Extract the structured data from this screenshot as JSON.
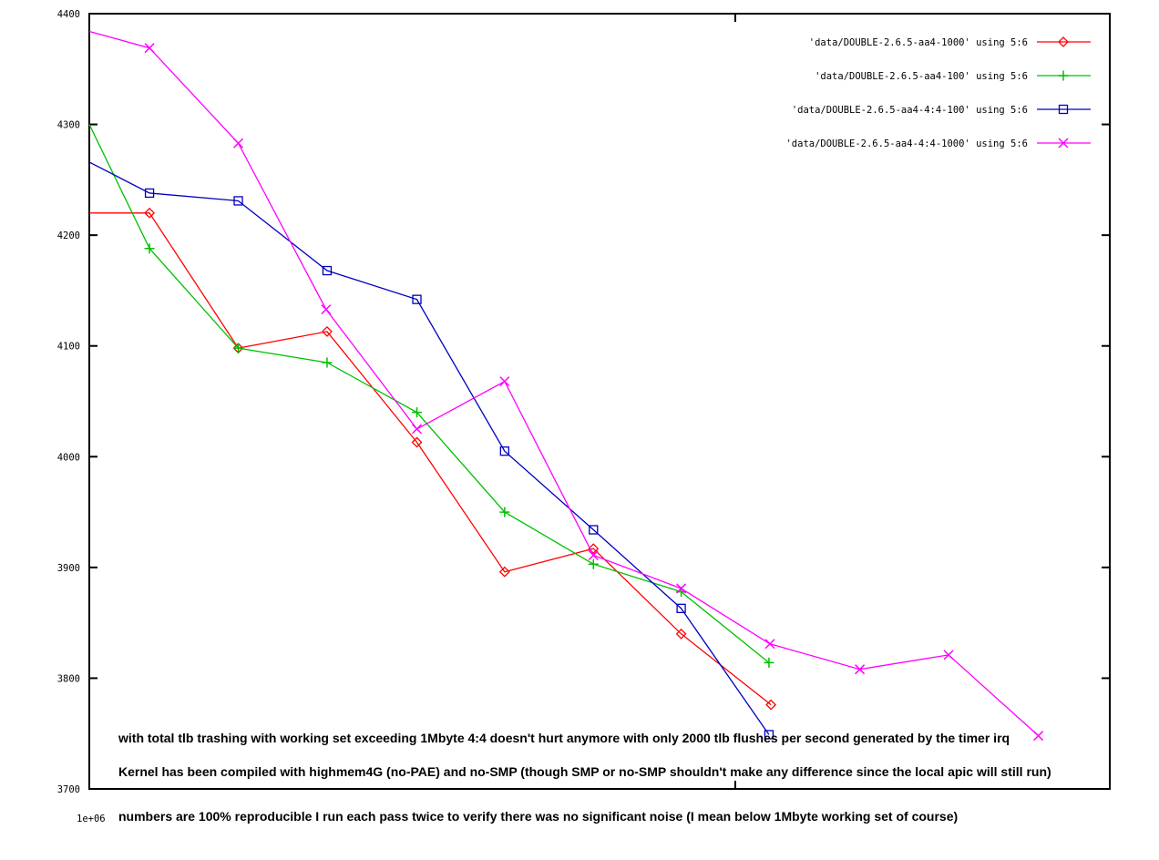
{
  "figure": {
    "background": "#ffffff",
    "axis_color": "#000000"
  },
  "chart_data": {
    "type": "line",
    "title": "",
    "xlabel": "",
    "ylabel": "",
    "x_axis": {
      "label_left": "1e+06",
      "unlabeled_tick_frac": 0.633,
      "scale": "log"
    },
    "y_axis": {
      "min": 3700,
      "max": 4400,
      "tick_step": 100,
      "tick_labels": [
        "3700",
        "3800",
        "3900",
        "4000",
        "4100",
        "4200",
        "4300",
        "4400"
      ]
    },
    "legend": {
      "position": "top-right-inside"
    },
    "series": [
      {
        "key": "double-2-6-5-aa4-1000",
        "label": "'data/DOUBLE-2.6.5-aa4-1000' using 5:6",
        "color": "#ff0000",
        "marker": "diamond",
        "first_marker_clipped": true,
        "x_frac": [
          0,
          0.059,
          0.146,
          0.233,
          0.321,
          0.407,
          0.494,
          0.58,
          0.668
        ],
        "y": [
          4220,
          4220,
          4098,
          4113,
          4013,
          3896,
          3917,
          3840,
          3776
        ]
      },
      {
        "key": "double-2-6-5-aa4-100",
        "label": "'data/DOUBLE-2.6.5-aa4-100' using 5:6",
        "color": "#00c000",
        "marker": "plus",
        "first_marker_clipped": true,
        "x_frac": [
          0,
          0.059,
          0.146,
          0.233,
          0.321,
          0.407,
          0.494,
          0.58,
          0.666
        ],
        "y": [
          4300,
          4188,
          4098,
          4085,
          4040,
          3950,
          3903,
          3878,
          3814
        ]
      },
      {
        "key": "double-2-6-5-aa4-4-4-100",
        "label": "'data/DOUBLE-2.6.5-aa4-4:4-100' using 5:6",
        "color": "#0000c0",
        "marker": "square",
        "first_marker_clipped": true,
        "x_frac": [
          0,
          0.059,
          0.146,
          0.233,
          0.321,
          0.407,
          0.494,
          0.58,
          0.666
        ],
        "y": [
          4266,
          4238,
          4231,
          4168,
          4142,
          4005,
          3934,
          3863,
          3749
        ]
      },
      {
        "key": "double-2-6-5-aa4-4-4-1000",
        "label": "'data/DOUBLE-2.6.5-aa4-4:4-1000' using 5:6",
        "color": "#ff00ff",
        "marker": "x",
        "first_marker_clipped": true,
        "x_frac": [
          0,
          0.059,
          0.146,
          0.232,
          0.321,
          0.407,
          0.494,
          0.58,
          0.667,
          0.755,
          0.842,
          0.93
        ],
        "y": [
          4384,
          4369,
          4283,
          4133,
          4025,
          4068,
          3911,
          3881,
          3831,
          3808,
          3821,
          3748
        ]
      }
    ],
    "annotations": [
      "with total tlb trashing with working set exceeding 1Mbyte 4:4 doesn't hurt anymore with only 2000 tlb flushes per second generated by the timer irq",
      "Kernel has been compiled with highmem4G (no-PAE) and no-SMP (though SMP or no-SMP shouldn't make any difference since the local apic will still run)",
      "numbers are 100% reproducible I run each pass twice to verify there was no significant noise (I mean below 1Mbyte working set of course)"
    ]
  }
}
